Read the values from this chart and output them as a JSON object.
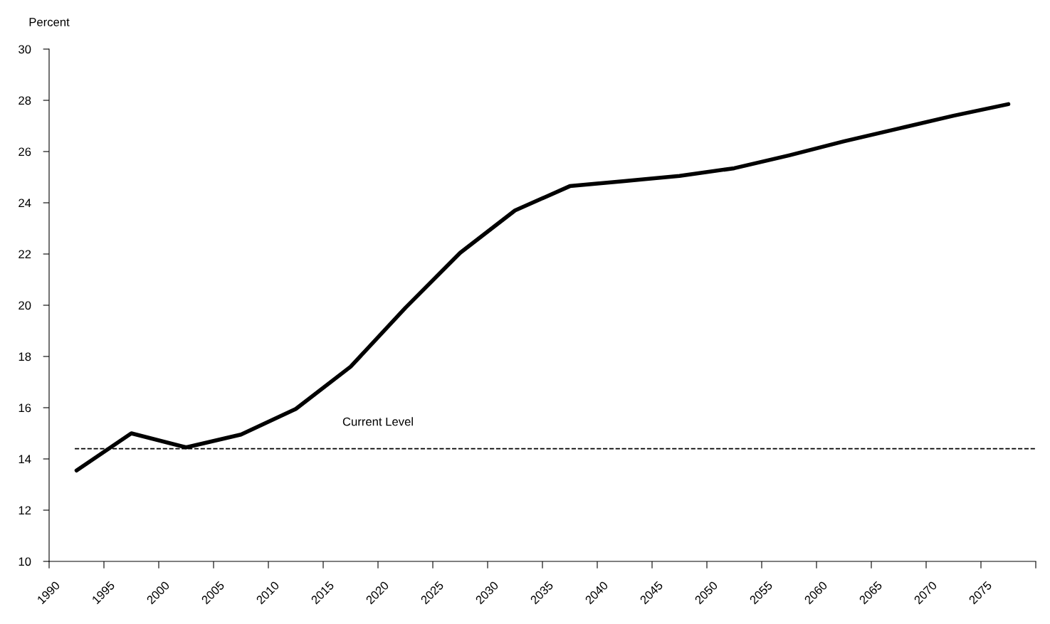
{
  "chart_data": {
    "type": "line",
    "ylabel": "Percent",
    "x": [
      1992.5,
      1997.5,
      2002.5,
      2007.5,
      2012.5,
      2017.5,
      2022.5,
      2027.5,
      2032.5,
      2037.5,
      2042.5,
      2047.5,
      2052.5,
      2057.5,
      2062.5,
      2067.5,
      2072.5,
      2077.5
    ],
    "series": [
      {
        "color": "#000000",
        "values": [
          13.55,
          15.0,
          14.45,
          14.95,
          15.95,
          17.6,
          19.9,
          22.05,
          23.7,
          24.65,
          24.85,
          25.05,
          25.35,
          25.85,
          26.4,
          26.9,
          27.4,
          27.85
        ]
      }
    ],
    "xlim": [
      1990,
      2080
    ],
    "xticks": [
      1990,
      1995,
      2000,
      2005,
      2010,
      2015,
      2020,
      2025,
      2030,
      2035,
      2040,
      2045,
      2050,
      2055,
      2060,
      2065,
      2070,
      2075,
      {
        "value": 2080,
        "label": null
      }
    ],
    "ylim": [
      10,
      30
    ],
    "yticks": [
      10,
      12,
      14,
      16,
      18,
      20,
      22,
      24,
      26,
      28,
      30
    ],
    "ref_lines": [
      {
        "axis": "y",
        "value": 14.4,
        "label": "Current Level",
        "color": "#000000",
        "line_style": "dashed"
      }
    ],
    "grid": false,
    "legend": false,
    "marker": "none",
    "line_style": "solid"
  }
}
